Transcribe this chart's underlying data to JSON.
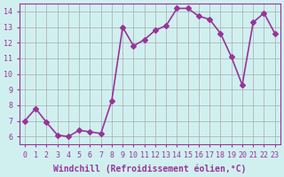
{
  "x": [
    0,
    1,
    2,
    3,
    4,
    5,
    6,
    7,
    8,
    9,
    10,
    11,
    12,
    13,
    14,
    15,
    16,
    17,
    18,
    19,
    20,
    21,
    22,
    23
  ],
  "y": [
    7.0,
    7.8,
    6.9,
    6.1,
    6.0,
    6.4,
    6.3,
    6.2,
    8.3,
    13.0,
    11.8,
    12.2,
    12.8,
    13.1,
    14.2,
    14.2,
    13.7,
    13.5,
    12.6,
    11.1,
    9.3,
    13.3,
    13.9,
    12.6
  ],
  "line_color": "#993399",
  "marker_color": "#993399",
  "bg_color": "#d0f0f0",
  "grid_color": "#aaaaaa",
  "xlabel": "Windchill (Refroidissement éolien,°C)",
  "xlim": [
    -0.5,
    23.5
  ],
  "ylim": [
    5.5,
    14.5
  ],
  "yticks": [
    6,
    7,
    8,
    9,
    10,
    11,
    12,
    13,
    14
  ],
  "xticks": [
    0,
    1,
    2,
    3,
    4,
    5,
    6,
    7,
    8,
    9,
    10,
    11,
    12,
    13,
    14,
    15,
    16,
    17,
    18,
    19,
    20,
    21,
    22,
    23
  ],
  "tick_fontsize": 6,
  "xlabel_fontsize": 7,
  "marker_size": 3,
  "line_width": 1.2
}
